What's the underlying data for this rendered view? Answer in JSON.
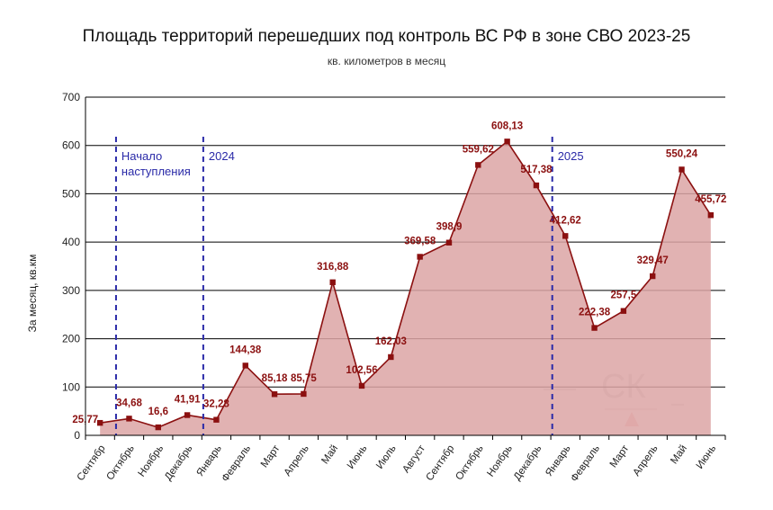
{
  "title": "Площадь территорий перешедших под контроль ВС РФ в зоне СВО 2023-25",
  "subtitle": "кв. километров в месяц",
  "colors": {
    "line": "#8b1010",
    "fill": "#dca5a5",
    "label": "#8b1010",
    "annotation": "#2a2aa8",
    "grid": "#000000"
  },
  "chart_data": {
    "type": "area",
    "title": "Площадь территорий перешедших под контроль ВС РФ в зоне СВО 2023-25",
    "subtitle": "кв. километров в месяц",
    "ylabel": "За месяц, кв.км",
    "xlabel": "",
    "ylim": [
      0,
      700
    ],
    "yticks": [
      0,
      100,
      200,
      300,
      400,
      500,
      600,
      700
    ],
    "grid": true,
    "categories": [
      "Сентябр",
      "Октябрь",
      "Ноябрь",
      "Декабрь",
      "Январь",
      "Февраль",
      "Март",
      "Апрель",
      "Май",
      "Июнь",
      "Июль",
      "Август",
      "Сентябр",
      "Октябрь",
      "Ноябрь",
      "Декабрь",
      "Январь",
      "Февраль",
      "Март",
      "Апрель",
      "Май",
      "Июнь"
    ],
    "values": [
      25.77,
      34.68,
      16.6,
      41.91,
      32.28,
      144.38,
      85.18,
      85.75,
      316.88,
      102.56,
      162.03,
      369.58,
      398.9,
      559.62,
      608.13,
      517.38,
      412.62,
      222.38,
      257.5,
      329.47,
      550.24,
      455.72
    ],
    "data_labels": [
      "25,77",
      "34,68",
      "16,6",
      "41,91",
      "32,28",
      "144,38",
      "85,18",
      "85,75",
      "316,88",
      "102,56",
      "162,03",
      "369,58",
      "398,9",
      "559,62",
      "608,13",
      "517,38",
      "412,62",
      "222,38",
      "257,5",
      "329,47",
      "550,24",
      "455,72"
    ],
    "annotations": [
      {
        "text_lines": [
          "Начало",
          "наступления"
        ],
        "after_category_index": 0
      },
      {
        "text_lines": [
          "2024"
        ],
        "after_category_index": 3
      },
      {
        "text_lines": [
          "2025"
        ],
        "after_category_index": 15
      }
    ]
  },
  "watermark": {
    "text": "СК"
  }
}
